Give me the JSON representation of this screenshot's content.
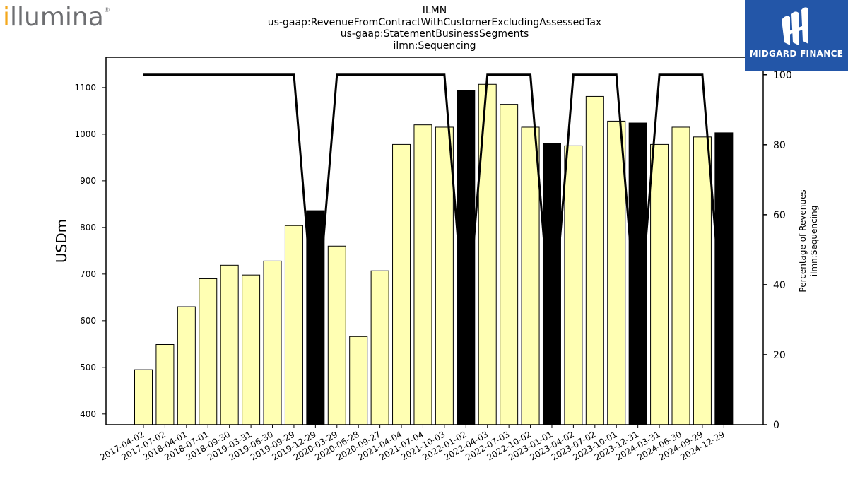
{
  "logos": {
    "illumina": {
      "text": "illumina",
      "accent": "#f4a81d",
      "color": "#6d6e71"
    },
    "midgard": {
      "text": "MIDGARD FINANCE",
      "color": "#2356a8"
    }
  },
  "chart_data": {
    "type": "bar",
    "title_lines": [
      "ILMN",
      "us-gaap:RevenueFromContractWithCustomerExcludingAssessedTax",
      "us-gaap:StatementBusinessSegments",
      "ilmn:Sequencing"
    ],
    "ylabel": "USDm",
    "y2label_lines": [
      "Percentage of Revenues",
      "ilmn:Sequencing"
    ],
    "ylim": [
      377,
      1165
    ],
    "y2lim": [
      0,
      105
    ],
    "yticks": [
      400,
      500,
      600,
      700,
      800,
      900,
      1000,
      1100
    ],
    "y2ticks": [
      0,
      20,
      40,
      60,
      80,
      100
    ],
    "categories": [
      "2017-04-02",
      "2017-07-02",
      "2018-04-01",
      "2018-07-01",
      "2018-09-30",
      "2019-03-31",
      "2019-06-30",
      "2019-09-29",
      "2019-12-29",
      "2020-03-29",
      "2020-06-28",
      "2020-09-27",
      "2021-04-04",
      "2021-07-04",
      "2021-10-03",
      "2022-01-02",
      "2022-04-03",
      "2022-07-03",
      "2022-10-02",
      "2023-01-01",
      "2023-04-02",
      "2023-07-02",
      "2023-10-01",
      "2023-12-31",
      "2024-03-31",
      "2024-06-30",
      "2024-09-29",
      "2024-12-29"
    ],
    "series": [
      {
        "type": "bar",
        "values": [
          495,
          549,
          630,
          690,
          719,
          698,
          728,
          804,
          836,
          760,
          566,
          707,
          978,
          1020,
          1015,
          1094,
          1107,
          1064,
          1015,
          980,
          975,
          1081,
          1028,
          1024,
          978,
          1015,
          994,
          1003
        ],
        "annual_flags": [
          false,
          false,
          false,
          false,
          false,
          false,
          false,
          false,
          true,
          false,
          false,
          false,
          false,
          false,
          false,
          true,
          false,
          false,
          false,
          true,
          false,
          false,
          false,
          true,
          false,
          false,
          false,
          true
        ],
        "color": "#ffffb3",
        "annual_color": "#000000"
      },
      {
        "type": "line",
        "axis": "right",
        "values": [
          100,
          100,
          100,
          100,
          100,
          100,
          100,
          100,
          25,
          100,
          100,
          100,
          100,
          100,
          100,
          25,
          100,
          100,
          100,
          25,
          100,
          100,
          100,
          25,
          100,
          100,
          100,
          25
        ],
        "color": "#000000"
      }
    ],
    "grid": false
  }
}
